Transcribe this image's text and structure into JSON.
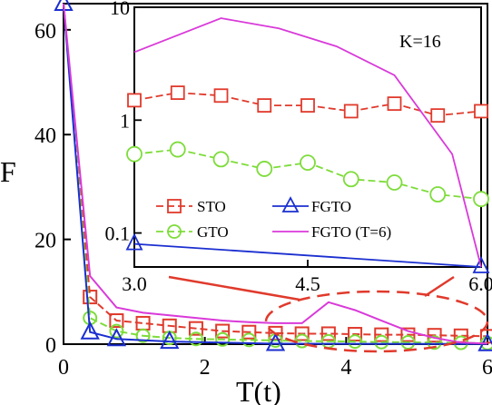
{
  "chart_data": [
    {
      "type": "line",
      "title": "",
      "xlabel": "T(t)",
      "ylabel": "F",
      "xlim": [
        0,
        6
      ],
      "ylim": [
        0,
        65
      ],
      "xticks": [
        "0",
        "2",
        "4",
        "6"
      ],
      "yticks": [
        "0",
        "20",
        "40",
        "60"
      ],
      "colors": {
        "STO": "#e03a2c",
        "GTO": "#7ddc3a",
        "FGTO": "#1b2fd0",
        "FGTO6": "#d93ad9"
      },
      "series": [
        {
          "name": "STO",
          "x": [
            0,
            0.375,
            0.75,
            1.125,
            1.5,
            1.875,
            2.25,
            2.625,
            3.0,
            3.375,
            3.75,
            4.125,
            4.5,
            4.875,
            5.25,
            5.625,
            6.0
          ],
          "y": [
            65,
            9,
            4.5,
            4,
            3.5,
            3,
            2.5,
            2.3,
            2.1,
            2.0,
            2.0,
            1.9,
            1.8,
            1.8,
            1.7,
            1.6,
            1.5
          ]
        },
        {
          "name": "GTO",
          "x": [
            0,
            0.375,
            0.75,
            1.125,
            1.5,
            1.875,
            2.25,
            2.625,
            3.0,
            3.375,
            3.75,
            4.125,
            4.5,
            4.875,
            5.25,
            5.625,
            6.0
          ],
          "y": [
            65,
            5,
            2.5,
            1.6,
            1.2,
            1.0,
            0.9,
            0.8,
            0.7,
            0.6,
            0.55,
            0.5,
            0.4,
            0.35,
            0.3,
            0.25,
            0.2
          ]
        },
        {
          "name": "FGTO",
          "x": [
            0,
            0.375,
            0.75,
            1.5,
            3.0,
            6.0
          ],
          "y": [
            65,
            2.3,
            1.0,
            0.5,
            0.08,
            0.05
          ]
        },
        {
          "name": "FGTO (T=6)",
          "x": [
            0,
            0.375,
            0.75,
            1.125,
            1.5,
            1.875,
            2.25,
            2.625,
            3.0,
            3.375,
            3.75,
            4.125,
            4.5,
            4.875,
            5.25,
            5.625,
            6.0
          ],
          "y": [
            65,
            13,
            7,
            6,
            5.5,
            5,
            4.5,
            4.2,
            4.0,
            4.0,
            8,
            6.5,
            4.5,
            2.5,
            1.2,
            0.3,
            0.1
          ]
        }
      ]
    },
    {
      "type": "line",
      "annotation": "K=16",
      "xlim": [
        3.0,
        6.0
      ],
      "ylim": [
        0.05,
        10
      ],
      "yscale": "log",
      "xticks": [
        "3.0",
        "4.5",
        "6.0"
      ],
      "yticks": [
        "0.1",
        "1",
        "10"
      ],
      "legend": [
        "STO",
        "FGTO",
        "GTO",
        "FGTO (T=6)"
      ],
      "legend_placement": "lower-center",
      "series": [
        {
          "name": "STO",
          "x": [
            3.0,
            3.375,
            3.75,
            4.125,
            4.5,
            4.875,
            5.25,
            5.625,
            6.0
          ],
          "y": [
            1.5,
            1.75,
            1.65,
            1.35,
            1.35,
            1.2,
            1.4,
            1.1,
            1.2
          ]
        },
        {
          "name": "GTO",
          "x": [
            3.0,
            3.375,
            3.75,
            4.125,
            4.5,
            4.875,
            5.25,
            5.625,
            6.0
          ],
          "y": [
            0.5,
            0.55,
            0.45,
            0.37,
            0.42,
            0.3,
            0.28,
            0.22,
            0.2
          ]
        },
        {
          "name": "FGTO",
          "x": [
            3.0,
            6.0
          ],
          "y": [
            0.08,
            0.05
          ]
        },
        {
          "name": "FGTO (T=6)",
          "x": [
            3.0,
            3.75,
            4.25,
            4.75,
            5.25,
            5.75,
            6.0
          ],
          "y": [
            4.0,
            8.0,
            6.5,
            4.5,
            2.5,
            0.5,
            0.05
          ]
        }
      ]
    }
  ]
}
